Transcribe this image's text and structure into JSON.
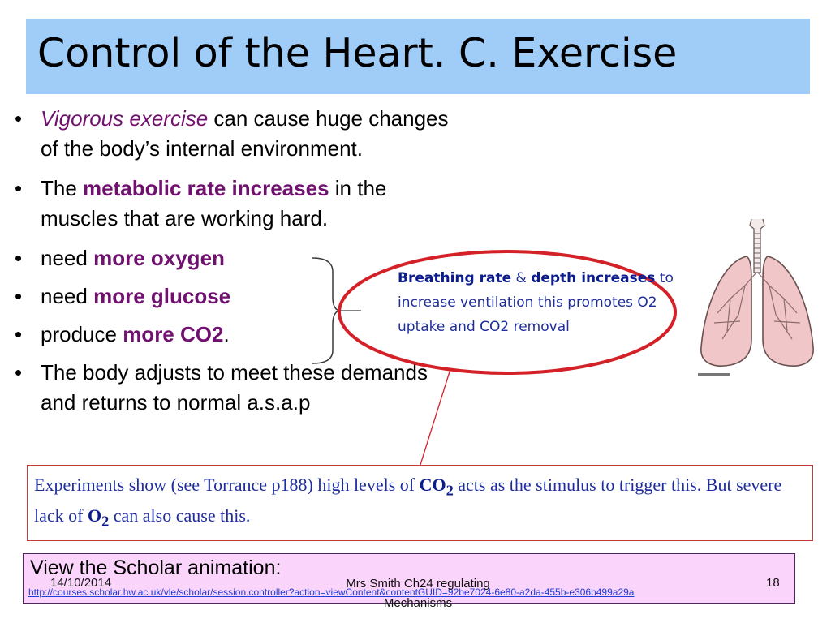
{
  "title": "Control of the Heart. C.  Exercise",
  "bullets": {
    "b1": {
      "italic": "Vigorous exercise",
      "rest_line1": " can cause huge changes",
      "line2": "of the body’s internal environment."
    },
    "b2": {
      "pre": "The ",
      "bold": "metabolic rate increases",
      "post_line1": " in the",
      "line2": "muscles that are working hard."
    },
    "b3": {
      "pre": " need ",
      "bold": "more oxygen"
    },
    "b4": {
      "pre": " need ",
      "bold": "more glucose"
    },
    "b5": {
      "pre": " produce ",
      "bold": "more CO2",
      "post": "."
    },
    "b6": {
      "line1": "The body adjusts to meet these demands",
      "line2": "and returns to normal  a.s.a.p"
    }
  },
  "bullet_symbol": "•",
  "callout": {
    "bold1": "Breathing rate",
    "amp": " & ",
    "bold2": "depth increases",
    "rest": " to increase ventilation this promotes O2 uptake and CO2 removal"
  },
  "experiment": {
    "part1": "Experiments show (see Torrance p188) high levels of ",
    "co2": "CO",
    "co2_sub": "2",
    "part2": " acts as the stimulus to trigger this.  But severe lack of ",
    "o2": "O",
    "o2_sub": "2",
    "part3": " can also cause this."
  },
  "scholar": {
    "title": "View the Scholar animation:",
    "link": "http://courses.scholar.hw.ac.uk/vle/scholar/session.controller?action=viewContent&contentGUID=92be7024-6e80-a2da-455b-e306b499a29a"
  },
  "footer": {
    "date": "14/10/2014",
    "center_line1": "Mrs Smith Ch24 regulating",
    "center_line2": "Mechanisms",
    "page": "18"
  },
  "colors": {
    "title_bg": "#9fcdf8",
    "accent": "#70106f",
    "callout_text": "#1e2d9c",
    "oval": "#d42027",
    "scholar_bg": "#fbd4fb",
    "link": "#1b3fd9"
  },
  "icons": {
    "lungs": "lungs-illustration"
  }
}
